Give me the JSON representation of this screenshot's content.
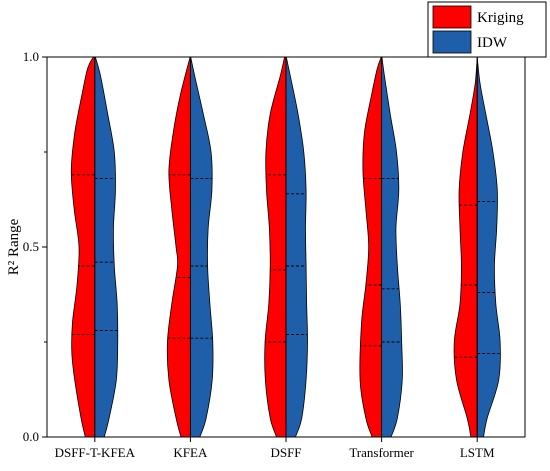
{
  "chart_data": {
    "type": "violin",
    "title": "",
    "ylabel": "R² Range",
    "xlabel": "",
    "ylim": [
      0.0,
      1.0
    ],
    "yticks": [
      "0.0",
      "0.5",
      "1.0"
    ],
    "categories": [
      "DSFF-T-KFEA",
      "KFEA",
      "DSFF",
      "Transformer",
      "LSTM"
    ],
    "legend": {
      "position": "top-right",
      "entries": [
        "Kriging",
        "IDW"
      ]
    },
    "colors": {
      "Kriging": "#ff0000",
      "IDW": "#1f5faa"
    },
    "series": [
      {
        "name": "Kriging",
        "quartiles": [
          [
            0.27,
            0.45,
            0.69
          ],
          [
            0.26,
            0.42,
            0.69
          ],
          [
            0.25,
            0.44,
            0.69
          ],
          [
            0.24,
            0.4,
            0.68
          ],
          [
            0.21,
            0.4,
            0.61
          ]
        ],
        "density": [
          [
            [
              0.0,
              0.33
            ],
            [
              0.05,
              0.48
            ],
            [
              0.15,
              0.7
            ],
            [
              0.22,
              0.8
            ],
            [
              0.3,
              0.78
            ],
            [
              0.4,
              0.62
            ],
            [
              0.5,
              0.55
            ],
            [
              0.6,
              0.72
            ],
            [
              0.7,
              0.82
            ],
            [
              0.8,
              0.7
            ],
            [
              0.9,
              0.45
            ],
            [
              0.97,
              0.25
            ],
            [
              1.0,
              0.05
            ]
          ],
          [
            [
              0.0,
              0.33
            ],
            [
              0.05,
              0.5
            ],
            [
              0.15,
              0.75
            ],
            [
              0.25,
              0.8
            ],
            [
              0.35,
              0.65
            ],
            [
              0.45,
              0.45
            ],
            [
              0.5,
              0.5
            ],
            [
              0.6,
              0.65
            ],
            [
              0.7,
              0.75
            ],
            [
              0.8,
              0.6
            ],
            [
              0.9,
              0.35
            ],
            [
              1.0,
              0.01
            ]
          ],
          [
            [
              0.0,
              0.33
            ],
            [
              0.05,
              0.55
            ],
            [
              0.15,
              0.72
            ],
            [
              0.25,
              0.73
            ],
            [
              0.35,
              0.6
            ],
            [
              0.45,
              0.55
            ],
            [
              0.55,
              0.58
            ],
            [
              0.65,
              0.68
            ],
            [
              0.75,
              0.7
            ],
            [
              0.85,
              0.55
            ],
            [
              0.95,
              0.2
            ],
            [
              1.0,
              0.05
            ]
          ],
          [
            [
              0.0,
              0.33
            ],
            [
              0.05,
              0.55
            ],
            [
              0.15,
              0.75
            ],
            [
              0.3,
              0.7
            ],
            [
              0.4,
              0.55
            ],
            [
              0.5,
              0.45
            ],
            [
              0.6,
              0.55
            ],
            [
              0.7,
              0.65
            ],
            [
              0.8,
              0.6
            ],
            [
              0.9,
              0.35
            ],
            [
              0.97,
              0.15
            ],
            [
              1.0,
              0.01
            ]
          ],
          [
            [
              0.0,
              0.22
            ],
            [
              0.05,
              0.35
            ],
            [
              0.15,
              0.72
            ],
            [
              0.25,
              0.8
            ],
            [
              0.35,
              0.6
            ],
            [
              0.45,
              0.55
            ],
            [
              0.55,
              0.6
            ],
            [
              0.65,
              0.63
            ],
            [
              0.75,
              0.5
            ],
            [
              0.85,
              0.25
            ],
            [
              0.93,
              0.07
            ],
            [
              1.0,
              0.0
            ]
          ]
        ]
      },
      {
        "name": "IDW",
        "quartiles": [
          [
            0.28,
            0.46,
            0.68
          ],
          [
            0.26,
            0.45,
            0.68
          ],
          [
            0.27,
            0.45,
            0.64
          ],
          [
            0.25,
            0.39,
            0.68
          ],
          [
            0.22,
            0.38,
            0.62
          ]
        ],
        "density": [
          [
            [
              0.0,
              0.33
            ],
            [
              0.05,
              0.5
            ],
            [
              0.15,
              0.75
            ],
            [
              0.25,
              0.8
            ],
            [
              0.35,
              0.78
            ],
            [
              0.45,
              0.68
            ],
            [
              0.55,
              0.65
            ],
            [
              0.65,
              0.72
            ],
            [
              0.75,
              0.68
            ],
            [
              0.85,
              0.45
            ],
            [
              0.95,
              0.2
            ],
            [
              1.0,
              0.02
            ]
          ],
          [
            [
              0.0,
              0.33
            ],
            [
              0.05,
              0.55
            ],
            [
              0.15,
              0.76
            ],
            [
              0.25,
              0.78
            ],
            [
              0.35,
              0.68
            ],
            [
              0.45,
              0.6
            ],
            [
              0.55,
              0.62
            ],
            [
              0.65,
              0.75
            ],
            [
              0.75,
              0.72
            ],
            [
              0.85,
              0.45
            ],
            [
              0.95,
              0.15
            ],
            [
              1.0,
              0.01
            ]
          ],
          [
            [
              0.0,
              0.33
            ],
            [
              0.05,
              0.55
            ],
            [
              0.15,
              0.7
            ],
            [
              0.25,
              0.75
            ],
            [
              0.35,
              0.72
            ],
            [
              0.45,
              0.7
            ],
            [
              0.55,
              0.68
            ],
            [
              0.65,
              0.7
            ],
            [
              0.75,
              0.62
            ],
            [
              0.85,
              0.42
            ],
            [
              0.95,
              0.15
            ],
            [
              1.0,
              0.01
            ]
          ],
          [
            [
              0.0,
              0.33
            ],
            [
              0.05,
              0.55
            ],
            [
              0.15,
              0.72
            ],
            [
              0.25,
              0.7
            ],
            [
              0.35,
              0.65
            ],
            [
              0.45,
              0.55
            ],
            [
              0.55,
              0.5
            ],
            [
              0.65,
              0.6
            ],
            [
              0.75,
              0.52
            ],
            [
              0.85,
              0.3
            ],
            [
              0.95,
              0.1
            ],
            [
              1.0,
              0.01
            ]
          ],
          [
            [
              0.0,
              0.22
            ],
            [
              0.05,
              0.35
            ],
            [
              0.15,
              0.75
            ],
            [
              0.25,
              0.8
            ],
            [
              0.35,
              0.65
            ],
            [
              0.45,
              0.6
            ],
            [
              0.55,
              0.68
            ],
            [
              0.65,
              0.7
            ],
            [
              0.75,
              0.55
            ],
            [
              0.85,
              0.3
            ],
            [
              0.93,
              0.1
            ],
            [
              1.0,
              0.0
            ]
          ]
        ]
      }
    ]
  }
}
